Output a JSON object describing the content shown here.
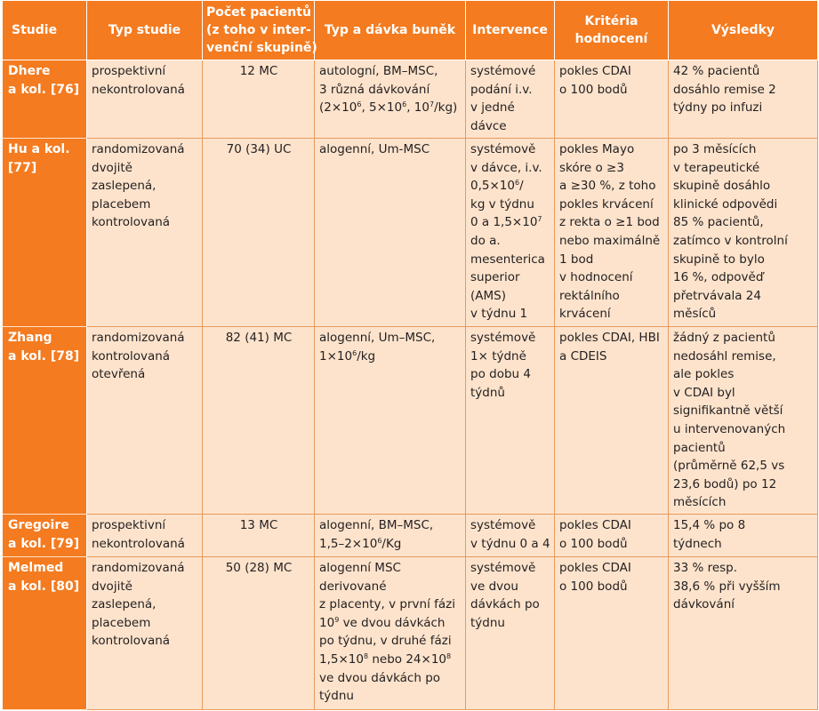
{
  "headers": [
    [
      "Studie"
    ],
    [
      "Typ studie"
    ],
    [
      "Počet pacientů",
      "(z toho v inter-",
      "venční skupině)"
    ],
    [
      "Typ a dávka buněk"
    ],
    [
      "Intervence"
    ],
    [
      "Kritéria",
      "hodnocení"
    ],
    [
      "Výsledky"
    ]
  ],
  "rows": [
    {
      "study": [
        "Dhere",
        "a kol. [76]"
      ],
      "type": [
        "prospektivní",
        "nekontrolovaná"
      ],
      "patients": "12 MC",
      "cells": [
        "autologní, BM–MSC,",
        "3 různá dávkování"
      ],
      "cells_dose": {
        "open": "(2×10",
        "e1": "6",
        "mid1": ", 5×10",
        "e2": "6",
        "mid2": ", 10",
        "e3": "7",
        "close": "/kg)"
      },
      "intervention": [
        "systémové",
        "podání i.v.",
        "v jedné",
        "dávce"
      ],
      "criteria": [
        "pokles CDAI",
        "o 100 bodů"
      ],
      "results": [
        "42 % pacientů",
        "dosáhlo remise 2",
        "týdny po infuzi"
      ]
    },
    {
      "study": [
        "Hu a kol.",
        "[77]"
      ],
      "type": [
        "randomizovaná",
        "dvojitě",
        "zaslepená,",
        "placebem",
        "kontrolovaná"
      ],
      "patients": "70 (34) UC",
      "cells": [
        "alogenní, Um-MSC"
      ],
      "intervention": {
        "l1": "systémově",
        "l2": "v dávce, i.v.",
        "l3a": "0,5×10",
        "l3e": "6",
        "l3b": "/",
        "l4": "kg v týdnu",
        "l5a": "0 a 1,5×10",
        "l5e": "7",
        "rest": [
          "do a.",
          "mesenterica",
          "superior",
          "(AMS)",
          "v týdnu 1"
        ]
      },
      "criteria": [
        "pokles Mayo",
        "skóre o ≥3",
        "a ≥30 %, z toho",
        "pokles krvácení",
        "z rekta o ≥1 bod",
        "nebo maximálně",
        "1 bod",
        "v hodnocení",
        "rektálního",
        "krvácení"
      ],
      "results": [
        "po 3 měsících",
        "v terapeutické",
        "skupině dosáhlo",
        "klinické odpovědi",
        "85 % pacientů,",
        "zatímco v kontrolní",
        "skupině to bylo",
        "16 %, odpověď",
        "přetrvávala 24",
        "měsíců"
      ]
    },
    {
      "study": [
        "Zhang",
        "a kol. [78]"
      ],
      "type": [
        "randomizovaná",
        "kontrolovaná",
        "otevřená"
      ],
      "patients": "82 (41) MC",
      "cells": [
        "alogenní, Um–MSC,"
      ],
      "cells_dose": {
        "a": "1×10",
        "e": "6",
        "b": "/kg"
      },
      "intervention": [
        "systémově",
        "1× týdně",
        "po dobu 4",
        "týdnů"
      ],
      "criteria": [
        "pokles CDAI, HBI",
        "a CDEIS"
      ],
      "results": [
        "žádný z pacientů",
        "nedosáhl remise,",
        "ale pokles",
        "v CDAI byl",
        "signifikantně větší",
        "u intervenovaných",
        "pacientů",
        "(průměrně 62,5 vs",
        "23,6 bodů) po 12",
        "měsících"
      ]
    },
    {
      "study": [
        "Gregoire",
        "a kol. [79]"
      ],
      "type": [
        "prospektivní",
        "nekontrolovaná"
      ],
      "patients": "13 MC",
      "cells": [
        "alogenní, BM–MSC,"
      ],
      "cells_dose": {
        "a": "1,5–2×10",
        "e": "6",
        "b": "/Kg"
      },
      "intervention": [
        "systémově",
        "v týdnu 0 a 4"
      ],
      "criteria": [
        "pokles CDAI",
        "o 100 bodů"
      ],
      "results": [
        "15,4 % po 8",
        "týdnech"
      ]
    },
    {
      "study": [
        "Melmed",
        "a kol. [80]"
      ],
      "type": [
        "randomizovaná",
        "dvojitě",
        "zaslepená,",
        "placebem",
        "kontrolovaná"
      ],
      "patients": "50 (28) MC",
      "cells": {
        "l1": "alogenní MSC",
        "l2": "derivované",
        "l3": "z placenty, v první fázi",
        "l4a": "10",
        "l4e": "9",
        "l4b": " ve dvou dávkách",
        "l5": "po týdnu, v druhé fázi",
        "l6a": "1,5×10",
        "l6e": "8",
        "l6b": " nebo 24×10",
        "l6e2": "8",
        "l7": "ve dvou dávkách po",
        "l8": "týdnu"
      },
      "intervention": [
        "systémově",
        "ve dvou",
        "dávkách po",
        "týdnu"
      ],
      "criteria": [
        "pokles CDAI",
        "o 100 bodů"
      ],
      "results": [
        "33 % resp.",
        "38,6 % při vyšším",
        "dávkování"
      ]
    }
  ]
}
